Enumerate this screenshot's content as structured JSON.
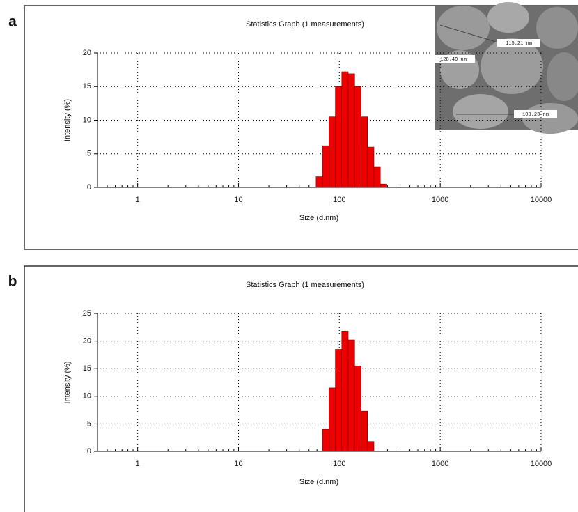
{
  "chart_data": [
    {
      "type": "histogram",
      "panel_label": "a",
      "title": "Statistics Graph (1 measurements)",
      "x_label": "Size (d.nm)",
      "y_label": "Intensity (%)",
      "x_log": true,
      "grid": true,
      "color": "#ee0000",
      "bins": [
        58.77,
        68.06,
        78.82,
        91.28,
        105.7,
        122.4,
        141.8,
        164.2,
        190.1,
        220.2,
        255.0,
        295.3
      ],
      "values": [
        1.6,
        6.2,
        10.5,
        15,
        17.2,
        16.9,
        15,
        10.5,
        6,
        3,
        0.5
      ],
      "xlim": [
        0.4,
        10000
      ],
      "xticks": [
        1,
        10,
        100,
        1000,
        10000
      ],
      "ylim": [
        0,
        20
      ],
      "yticks": [
        0,
        5,
        10,
        15,
        20
      ],
      "inset_labels": [
        "115.21 nm",
        "128.49 nm",
        "109.23 nm"
      ]
    },
    {
      "type": "histogram",
      "panel_label": "b",
      "title": "Statistics Graph (1 measurements)",
      "x_label": "Size (d.nm)",
      "y_label": "Intensity (%)",
      "x_log": true,
      "grid": true,
      "color": "#ee0000",
      "bins": [
        68.06,
        78.82,
        91.28,
        105.7,
        122.4,
        141.8,
        164.2,
        190.1,
        220.2
      ],
      "values": [
        4,
        11.5,
        18.5,
        21.8,
        20.2,
        15.5,
        7.3,
        1.8
      ],
      "xlim": [
        0.4,
        10000
      ],
      "xticks": [
        1,
        10,
        100,
        1000,
        10000
      ],
      "ylim": [
        0,
        25
      ],
      "yticks": [
        0,
        5,
        10,
        15,
        20,
        25
      ]
    }
  ]
}
